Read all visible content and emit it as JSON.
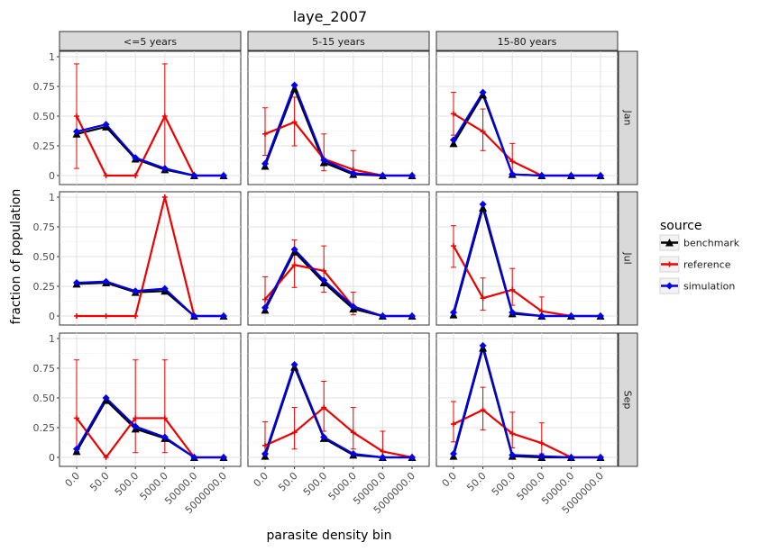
{
  "chart_data": {
    "type": "line",
    "title": "laye_2007",
    "xlabel": "parasite density bin",
    "ylabel": "fraction of population",
    "ylim": [
      0,
      1
    ],
    "yticks": [
      0,
      0.25,
      0.5,
      0.75,
      1
    ],
    "ytick_labels": [
      "0",
      "0.25",
      "0.50",
      "0.75",
      "1"
    ],
    "categories": [
      "0.0",
      "50.0",
      "500.0",
      "5000.0",
      "50000.0",
      "5000000.0"
    ],
    "grid": true,
    "legend_position": "right",
    "col_facets": [
      "<=5 years",
      "5-15 years",
      "15-80 years"
    ],
    "row_facets": [
      "Jan",
      "Jul",
      "Sep"
    ],
    "legend": {
      "title": "source",
      "entries": [
        {
          "key": "benchmark",
          "label": "benchmark",
          "color": "#000000"
        },
        {
          "key": "reference",
          "label": "reference",
          "color": "#ee0000"
        },
        {
          "key": "simulation",
          "label": "simulation",
          "color": "#0000ee"
        }
      ]
    },
    "panels": [
      {
        "row": "Jan",
        "col": "<=5 years",
        "benchmark": [
          0.35,
          0.41,
          0.14,
          0.05,
          0.0,
          0.0
        ],
        "reference": [
          0.5,
          0.0,
          0.0,
          0.5,
          0.0,
          0.0
        ],
        "reference_low": [
          0.06,
          0.0,
          0.0,
          0.06,
          0.0,
          0.0
        ],
        "reference_high": [
          0.94,
          0.0,
          0.0,
          0.94,
          0.0,
          0.0
        ],
        "simulation": [
          0.37,
          0.43,
          0.15,
          0.06,
          0.0,
          0.0
        ]
      },
      {
        "row": "Jan",
        "col": "5-15 years",
        "benchmark": [
          0.08,
          0.73,
          0.11,
          0.01,
          0.0,
          0.0
        ],
        "reference": [
          0.35,
          0.45,
          0.14,
          0.05,
          0.0,
          0.0
        ],
        "reference_low": [
          0.17,
          0.25,
          0.04,
          0.0,
          0.0,
          0.0
        ],
        "reference_high": [
          0.57,
          0.66,
          0.35,
          0.21,
          0.0,
          0.0
        ],
        "simulation": [
          0.1,
          0.76,
          0.13,
          0.02,
          0.0,
          0.0
        ]
      },
      {
        "row": "Jan",
        "col": "15-80 years",
        "benchmark": [
          0.27,
          0.68,
          0.01,
          0.0,
          0.0,
          0.0
        ],
        "reference": [
          0.52,
          0.37,
          0.12,
          0.0,
          0.0,
          0.0
        ],
        "reference_low": [
          0.34,
          0.21,
          0.02,
          0.0,
          0.0,
          0.0
        ],
        "reference_high": [
          0.7,
          0.56,
          0.27,
          0.0,
          0.0,
          0.0
        ],
        "simulation": [
          0.3,
          0.7,
          0.01,
          0.0,
          0.0,
          0.0
        ]
      },
      {
        "row": "Jul",
        "col": "<=5 years",
        "benchmark": [
          0.27,
          0.28,
          0.2,
          0.21,
          0.0,
          0.0
        ],
        "reference": [
          0.0,
          0.0,
          0.0,
          1.0,
          0.0,
          0.0
        ],
        "reference_low": [
          0.0,
          0.0,
          0.0,
          1.0,
          0.0,
          0.0
        ],
        "reference_high": [
          0.0,
          0.0,
          0.0,
          1.0,
          0.0,
          0.0
        ],
        "simulation": [
          0.28,
          0.29,
          0.21,
          0.23,
          0.0,
          0.0
        ]
      },
      {
        "row": "Jul",
        "col": "5-15 years",
        "benchmark": [
          0.05,
          0.54,
          0.28,
          0.06,
          0.0,
          0.0
        ],
        "reference": [
          0.14,
          0.43,
          0.38,
          0.08,
          0.0,
          0.0
        ],
        "reference_low": [
          0.04,
          0.24,
          0.2,
          0.01,
          0.0,
          0.0
        ],
        "reference_high": [
          0.33,
          0.64,
          0.59,
          0.2,
          0.0,
          0.0
        ],
        "simulation": [
          0.07,
          0.56,
          0.3,
          0.08,
          0.0,
          0.0
        ]
      },
      {
        "row": "Jul",
        "col": "15-80 years",
        "benchmark": [
          0.01,
          0.91,
          0.02,
          0.0,
          0.0,
          0.0
        ],
        "reference": [
          0.59,
          0.15,
          0.22,
          0.04,
          0.0,
          0.0
        ],
        "reference_low": [
          0.41,
          0.05,
          0.09,
          0.0,
          0.0,
          0.0
        ],
        "reference_high": [
          0.76,
          0.32,
          0.4,
          0.16,
          0.0,
          0.0
        ],
        "simulation": [
          0.03,
          0.94,
          0.03,
          0.0,
          0.0,
          0.0
        ]
      },
      {
        "row": "Sep",
        "col": "<=5 years",
        "benchmark": [
          0.05,
          0.48,
          0.24,
          0.16,
          0.0,
          0.0
        ],
        "reference": [
          0.33,
          0.0,
          0.33,
          0.33,
          0.0,
          0.0
        ],
        "reference_low": [
          0.05,
          0.0,
          0.04,
          0.04,
          0.0,
          0.0
        ],
        "reference_high": [
          0.82,
          0.0,
          0.82,
          0.82,
          0.0,
          0.0
        ],
        "simulation": [
          0.07,
          0.5,
          0.26,
          0.17,
          0.0,
          0.0
        ]
      },
      {
        "row": "Sep",
        "col": "5-15 years",
        "benchmark": [
          0.01,
          0.76,
          0.16,
          0.02,
          0.0,
          0.0
        ],
        "reference": [
          0.1,
          0.21,
          0.42,
          0.21,
          0.05,
          0.0
        ],
        "reference_low": [
          0.02,
          0.07,
          0.22,
          0.07,
          0.0,
          0.0
        ],
        "reference_high": [
          0.3,
          0.42,
          0.64,
          0.42,
          0.22,
          0.0
        ],
        "simulation": [
          0.03,
          0.78,
          0.17,
          0.03,
          0.0,
          0.0
        ]
      },
      {
        "row": "Sep",
        "col": "15-80 years",
        "benchmark": [
          0.01,
          0.92,
          0.01,
          0.0,
          0.0,
          0.0
        ],
        "reference": [
          0.28,
          0.4,
          0.2,
          0.12,
          0.0,
          0.0
        ],
        "reference_low": [
          0.13,
          0.23,
          0.08,
          0.03,
          0.0,
          0.0
        ],
        "reference_high": [
          0.47,
          0.59,
          0.38,
          0.29,
          0.0,
          0.0
        ],
        "simulation": [
          0.03,
          0.94,
          0.02,
          0.01,
          0.0,
          0.0
        ]
      }
    ]
  }
}
